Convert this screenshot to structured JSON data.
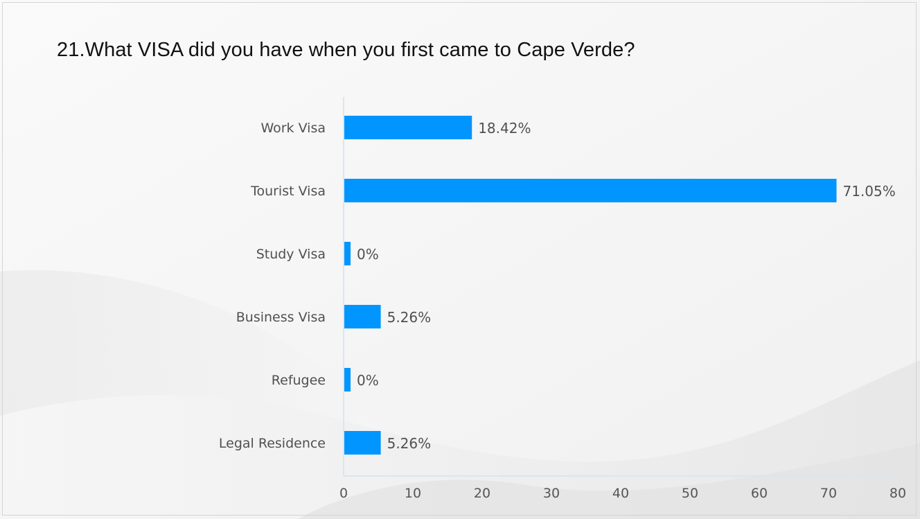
{
  "slide": {
    "title": "21.What VISA did you have when you first came to Cape Verde?"
  },
  "chart_data": {
    "type": "bar",
    "orientation": "horizontal",
    "title": "21.What VISA did you have when you first came to Cape Verde?",
    "categories": [
      "Work Visa",
      "Tourist Visa",
      "Study Visa",
      "Business Visa",
      "Refugee",
      "Legal Residence"
    ],
    "values": [
      18.42,
      71.05,
      0,
      5.26,
      0,
      5.26
    ],
    "value_labels": [
      "18.42%",
      "71.05%",
      "0%",
      "5.26%",
      "0%",
      "5.26%"
    ],
    "xlim": [
      0,
      80
    ],
    "xticks": [
      0,
      10,
      20,
      30,
      40,
      50,
      60,
      70,
      80
    ],
    "xlabel": "",
    "ylabel": "",
    "grid": false,
    "legend": "none",
    "bar_color": "#0095ff",
    "axis_color": "#d9e6f2"
  }
}
